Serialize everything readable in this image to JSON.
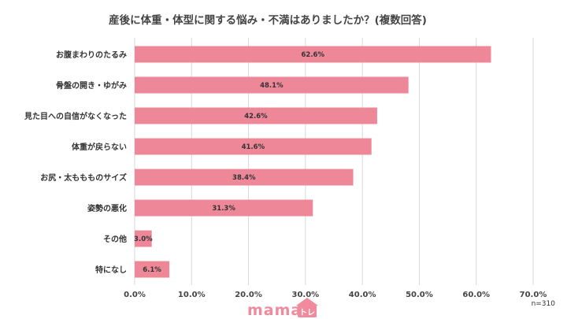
{
  "chart_data": {
    "type": "bar",
    "orientation": "horizontal",
    "title": "産後に体重・体型に関する悩み・不満はありましたか？(複数回答)",
    "categories": [
      "お腹まわりのたるみ",
      "骨盤の開き・ゆがみ",
      "見た目への自信がなくなった",
      "体重が戻らない",
      "お尻・太ももものサイズ",
      "姿勢の悪化",
      "その他",
      "特になし"
    ],
    "values": [
      62.6,
      48.1,
      42.6,
      41.6,
      38.4,
      31.3,
      3.0,
      6.1
    ],
    "data_labels": [
      "62.6%",
      "48.1%",
      "42.6%",
      "41.6%",
      "38.4%",
      "31.3%",
      "3.0%",
      "6.1%"
    ],
    "xlim": [
      0,
      70
    ],
    "xticks": [
      "0.0%",
      "10.0%",
      "20.0%",
      "30.0%",
      "40.0%",
      "50.0%",
      "60.0%",
      "70.0%"
    ],
    "xlabel": "",
    "ylabel": "",
    "grid": true,
    "bar_color": "#ee8899",
    "grid_color": "#d9d9d9"
  },
  "sample_note": "n=310",
  "logo": {
    "text": "mama",
    "tile_text": "トレ"
  }
}
